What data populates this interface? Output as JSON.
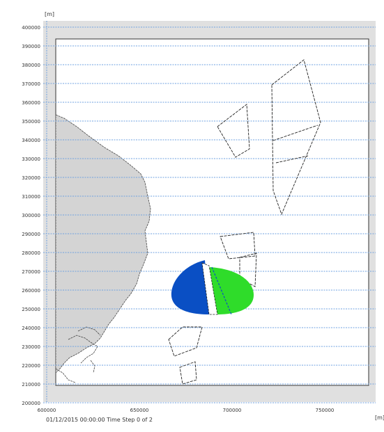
{
  "map": {
    "y_axis_unit": "[m]",
    "x_axis_unit": "[m]",
    "status_text": "01/12/2015 00:00:00 Time Step 0 of 2",
    "y_ticks": [
      "400000",
      "390000",
      "380000",
      "370000",
      "360000",
      "350000",
      "340000",
      "330000",
      "320000",
      "310000",
      "300000",
      "290000",
      "280000",
      "270000",
      "260000",
      "250000",
      "240000",
      "230000",
      "220000",
      "210000",
      "200000"
    ],
    "x_ticks": [
      "600000",
      "650000",
      "700000",
      "750000"
    ],
    "colors": {
      "land": "#d4d4d4",
      "water": "#ffffff",
      "frame_gray": "#e0e0e0",
      "gridline": "#6fa2e0",
      "blue_plume": "#0a4fc4",
      "green_plume": "#2fdc2a"
    }
  }
}
